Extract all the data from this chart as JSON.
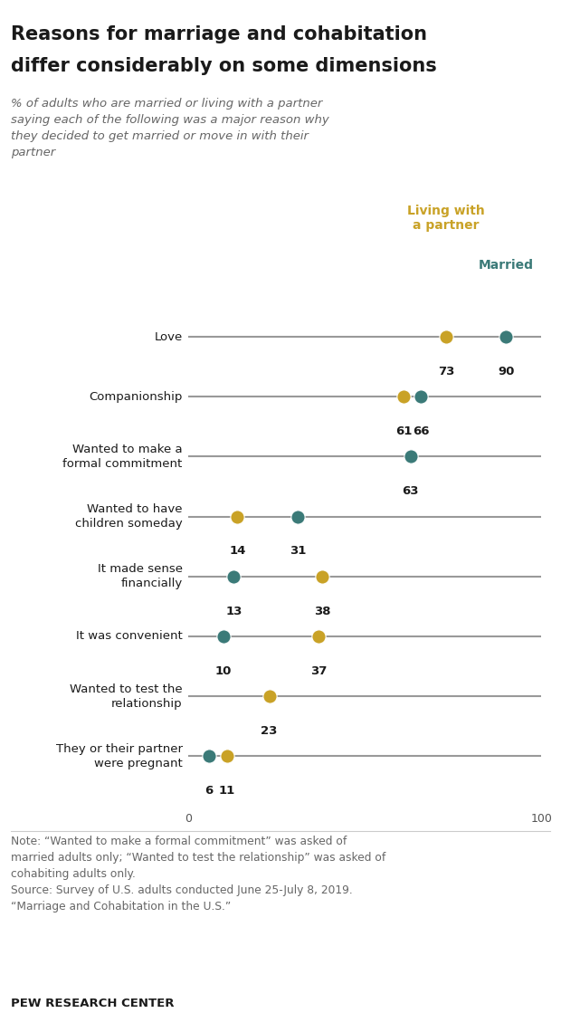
{
  "title_line1": "Reasons for marriage and cohabitation",
  "title_line2": "differ considerably on some dimensions",
  "subtitle": "% of adults who are married or living with a partner\nsaying each of the following was a major reason why\nthey decided to get married or move in with their\npartner",
  "legend_living": "Living with\na partner",
  "legend_married": "Married",
  "categories": [
    "Love",
    "Companionship",
    "Wanted to make a\nformal commitment",
    "Wanted to have\nchildren someday",
    "It made sense\nfinancially",
    "It was convenient",
    "Wanted to test the\nrelationship",
    "They or their partner\nwere pregnant"
  ],
  "living_values": [
    73,
    61,
    null,
    14,
    38,
    37,
    23,
    11
  ],
  "married_values": [
    90,
    66,
    63,
    31,
    13,
    10,
    null,
    6
  ],
  "living_color": "#c9a227",
  "married_color": "#3b7a78",
  "line_color": "#999999",
  "note_line1": "Note: “Wanted to make a formal commitment” was asked of",
  "note_line2": "married adults only; “Wanted to test the relationship” was asked of",
  "note_line3": "cohabiting adults only.",
  "note_line4": "Source: Survey of U.S. adults conducted June 25-July 8, 2019.",
  "note_line5": "“Marriage and Cohabitation in the U.S.”",
  "footer": "PEW RESEARCH CENTER",
  "background_color": "#ffffff",
  "title_color": "#1a1a1a",
  "subtitle_color": "#666666",
  "note_color": "#666666"
}
